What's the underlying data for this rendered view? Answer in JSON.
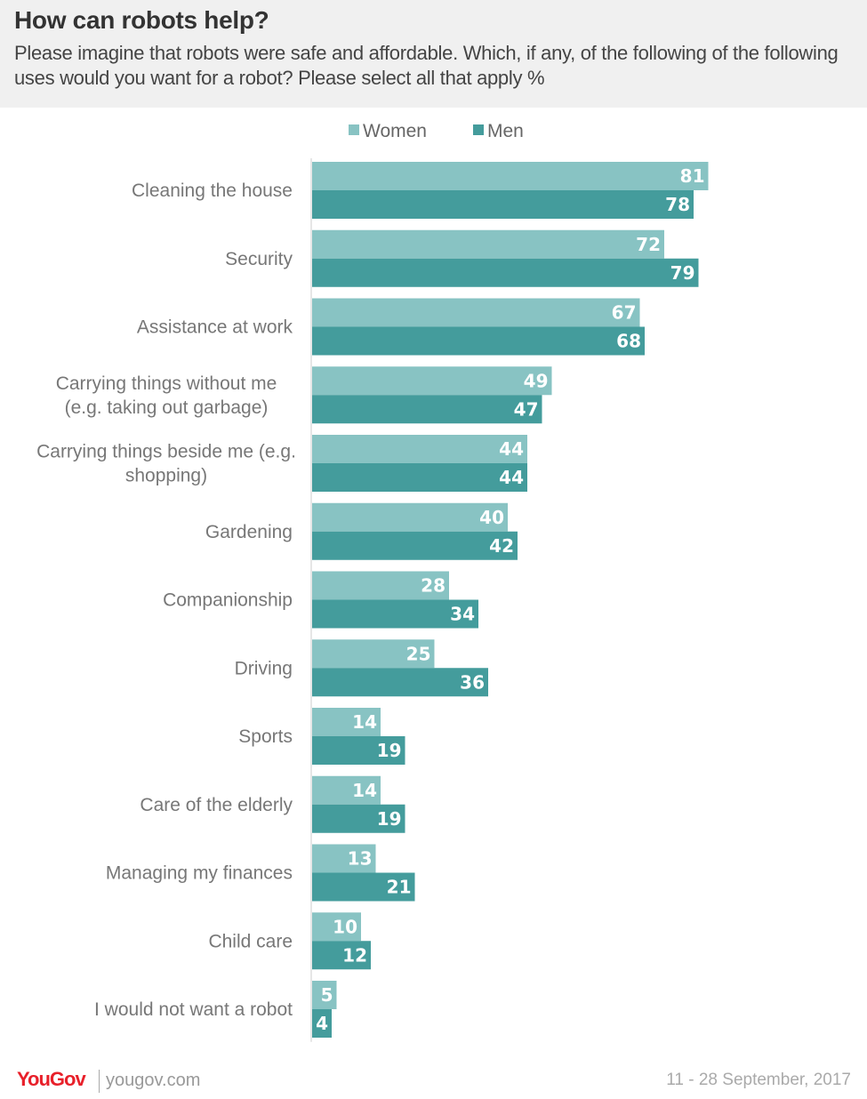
{
  "header": {
    "title": "How can robots help?",
    "subtitle": "Please imagine that robots were safe and affordable. Which, if any, of the following of the following uses would you want for a robot? Please select all that apply %"
  },
  "footer": {
    "logo": "YouGov",
    "url": "yougov.com",
    "date": "11 - 28 September, 2017"
  },
  "colors": {
    "women": "#88c3c3",
    "men": "#449c9c",
    "header_bg": "#f0f0f0",
    "logo": "#e8202a"
  },
  "chart_data": {
    "type": "bar",
    "orientation": "horizontal",
    "xlim": [
      0,
      100
    ],
    "legend_position": "top",
    "grid": false,
    "categories": [
      [
        "Cleaning the house"
      ],
      [
        "Security"
      ],
      [
        "Assistance at work"
      ],
      [
        "Carrying things without me",
        "(e.g. taking out garbage)"
      ],
      [
        "Carrying things beside me (e.g.",
        "shopping)"
      ],
      [
        "Gardening"
      ],
      [
        "Companionship"
      ],
      [
        "Driving"
      ],
      [
        "Sports"
      ],
      [
        "Care of the elderly"
      ],
      [
        "Managing my finances"
      ],
      [
        "Child care"
      ],
      [
        "I would not want a robot"
      ]
    ],
    "series": [
      {
        "name": "Women",
        "values": [
          81,
          72,
          67,
          49,
          44,
          40,
          28,
          25,
          14,
          14,
          13,
          10,
          5
        ]
      },
      {
        "name": "Men",
        "values": [
          78,
          79,
          68,
          47,
          44,
          42,
          34,
          36,
          19,
          19,
          21,
          12,
          4
        ]
      }
    ]
  }
}
